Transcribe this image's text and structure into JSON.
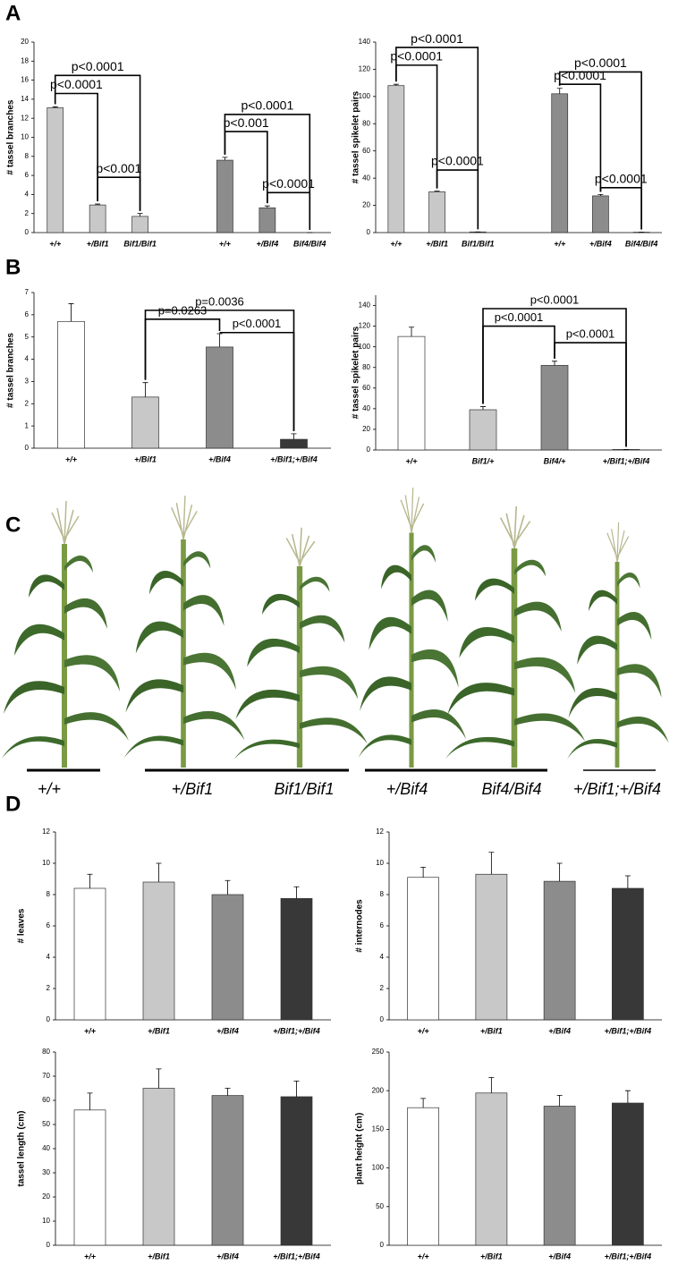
{
  "panel_labels": [
    "A",
    "B",
    "C",
    "D"
  ],
  "photo_labels": [
    "+/+",
    "+/Bif1",
    "Bif1/Bif1",
    "+/Bif4",
    "Bif4/Bif4",
    "+/Bif1;+/Bif4"
  ],
  "chart_data": [
    {
      "type": "bar",
      "y_label": "# tassel branches",
      "categories": [
        "+/+",
        "+/Bif1",
        "Bif1/Bif1",
        "+/+",
        "+/Bif4",
        "Bif4/Bif4"
      ],
      "values": [
        13.1,
        2.9,
        1.7,
        7.6,
        2.6,
        0
      ],
      "errors": [
        0.1,
        0.1,
        0.3,
        0.3,
        0.2,
        0
      ],
      "colors": [
        "#c8c8c8",
        "#c8c8c8",
        "#c8c8c8",
        "#8c8c8c",
        "#8c8c8c",
        "#8c8c8c"
      ],
      "ylim": [
        0,
        20
      ],
      "yticks": [
        0,
        2,
        4,
        6,
        8,
        10,
        12,
        14,
        16,
        18,
        20
      ],
      "annotations": [
        "p<0.0001",
        "p<0.0001",
        "p<0.001",
        "p<0.0001",
        "p<0.001",
        "p<0.0001"
      ]
    },
    {
      "type": "bar",
      "y_label": "# tassel spikelet pairs",
      "categories": [
        "+/+",
        "+/Bif1",
        "Bif1/Bif1",
        "+/+",
        "+/Bif4",
        "Bif4/Bif4"
      ],
      "values": [
        108,
        30,
        0.5,
        102,
        27,
        0.3
      ],
      "errors": [
        1,
        0.5,
        0,
        4,
        1,
        0
      ],
      "colors": [
        "#c8c8c8",
        "#c8c8c8",
        "#c8c8c8",
        "#8c8c8c",
        "#8c8c8c",
        "#8c8c8c"
      ],
      "ylim": [
        0,
        140
      ],
      "yticks": [
        0,
        20,
        40,
        60,
        80,
        100,
        120,
        140
      ],
      "annotations": [
        "p<0.0001",
        "p<0.0001",
        "p<0.0001",
        "p<0.0001",
        "p<0.0001",
        "p<0.0001"
      ]
    },
    {
      "type": "bar",
      "y_label": "# tassel branches",
      "categories": [
        "+/+",
        "+/Bif1",
        "+/Bif4",
        "+/Bif1;+/Bif4"
      ],
      "values": [
        5.7,
        2.3,
        4.55,
        0.4
      ],
      "errors": [
        0.8,
        0.65,
        0.6,
        0.25
      ],
      "colors": [
        "#ffffff",
        "#c8c8c8",
        "#8c8c8c",
        "#383838"
      ],
      "ylim": [
        0,
        7
      ],
      "yticks": [
        0,
        1,
        2,
        3,
        4,
        5,
        6,
        7
      ],
      "annotations": [
        "p=0.0036",
        "p=0.0263",
        "p<0.0001"
      ]
    },
    {
      "type": "bar",
      "y_label": "# tassel spikelet pairs",
      "categories": [
        "+/+",
        "Bif1/+",
        "Bif4/+",
        "+/Bif1;+/Bif4"
      ],
      "values": [
        110,
        39,
        82,
        0.5
      ],
      "errors": [
        9,
        3,
        4,
        0
      ],
      "colors": [
        "#ffffff",
        "#c8c8c8",
        "#8c8c8c",
        "#383838"
      ],
      "ylim": [
        0,
        150
      ],
      "yticks": [
        0,
        20,
        40,
        60,
        80,
        100,
        120,
        140
      ],
      "annotations": [
        "p<0.0001",
        "p<0.0001",
        "p<0.0001"
      ]
    },
    {
      "type": "bar",
      "y_label": "# leaves",
      "categories": [
        "+/+",
        "+/Bif1",
        "+/Bif4",
        "+/Bif1;+/Bif4"
      ],
      "values": [
        8.4,
        8.8,
        8.0,
        7.75
      ],
      "errors": [
        0.9,
        1.2,
        0.9,
        0.75
      ],
      "colors": [
        "#ffffff",
        "#c8c8c8",
        "#8c8c8c",
        "#383838"
      ],
      "ylim": [
        0,
        12
      ],
      "yticks": [
        0,
        2,
        4,
        6,
        8,
        10,
        12
      ]
    },
    {
      "type": "bar",
      "y_label": "# internodes",
      "categories": [
        "+/+",
        "+/Bif1",
        "+/Bif4",
        "+/Bif1;+/Bif4"
      ],
      "values": [
        9.1,
        9.3,
        8.85,
        8.4
      ],
      "errors": [
        0.65,
        1.4,
        1.15,
        0.8
      ],
      "colors": [
        "#ffffff",
        "#c8c8c8",
        "#8c8c8c",
        "#383838"
      ],
      "ylim": [
        0,
        12
      ],
      "yticks": [
        0,
        2,
        4,
        6,
        8,
        10,
        12
      ]
    },
    {
      "type": "bar",
      "y_label": "tassel length (cm)",
      "categories": [
        "+/+",
        "+/Bif1",
        "+/Bif4",
        "+/Bif1;+/Bif4"
      ],
      "values": [
        56,
        65,
        62,
        61.5
      ],
      "errors": [
        7,
        8,
        3,
        6.5
      ],
      "colors": [
        "#ffffff",
        "#c8c8c8",
        "#8c8c8c",
        "#383838"
      ],
      "ylim": [
        0,
        80
      ],
      "yticks": [
        0,
        10,
        20,
        30,
        40,
        50,
        60,
        70,
        80
      ]
    },
    {
      "type": "bar",
      "y_label": "plant height (cm)",
      "categories": [
        "+/+",
        "+/Bif1",
        "+/Bif4",
        "+/Bif1;+/Bif4"
      ],
      "values": [
        178,
        197,
        180,
        184
      ],
      "errors": [
        12,
        20,
        14,
        16
      ],
      "colors": [
        "#ffffff",
        "#c8c8c8",
        "#8c8c8c",
        "#383838"
      ],
      "ylim": [
        0,
        250
      ],
      "yticks": [
        0,
        50,
        100,
        150,
        200,
        250
      ]
    }
  ]
}
